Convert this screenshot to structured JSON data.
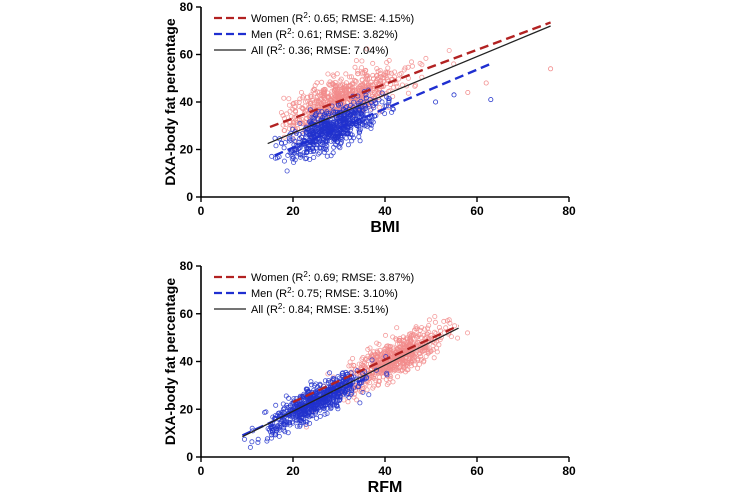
{
  "colors": {
    "women_line": "#b22222",
    "women_points": "#f28c8c",
    "men_line": "#1f2fd0",
    "men_points": "#2233cc",
    "all_line": "#222222"
  },
  "chart_data": [
    {
      "type": "scatter",
      "title": "",
      "xlabel": "BMI",
      "ylabel": "DXA-body fat percentage",
      "xlim": [
        0,
        80
      ],
      "ylim": [
        0,
        80
      ],
      "xticks": [
        "0",
        "20",
        "40",
        "60",
        "80"
      ],
      "yticks": [
        "0",
        "20",
        "40",
        "60",
        "80"
      ],
      "legend_position": "top-left",
      "series": [
        {
          "name": "Women",
          "legend_prefix": "Women (R",
          "legend_sup": "2",
          "legend_suffix": ": 0.65; RMSE: 4.15%)",
          "style": "dashed",
          "line": [
            [
              15,
              29.5
            ],
            [
              76,
              73.5
            ]
          ],
          "cloud": {
            "x_range": [
              17,
              62
            ],
            "x_center": 31,
            "x_spread": 6,
            "slope": 0.75,
            "intercept": 18.5,
            "sd": 4.5,
            "n": 650,
            "seed": 11
          },
          "outliers": [
            [
              76,
              54
            ],
            [
              62,
              48
            ],
            [
              58,
              44
            ]
          ]
        },
        {
          "name": "Men",
          "legend_prefix": "Men (R",
          "legend_sup": "2",
          "legend_suffix": ": 0.61; RMSE: 3.82%)",
          "style": "dashed",
          "line": [
            [
              16,
              17.5
            ],
            [
              63.5,
              56.5
            ]
          ],
          "cloud": {
            "x_range": [
              15,
              60
            ],
            "x_center": 28.5,
            "x_spread": 4.5,
            "slope": 0.88,
            "intercept": 3.5,
            "sd": 3.8,
            "n": 650,
            "seed": 23
          },
          "outliers": [
            [
              63,
              41
            ],
            [
              55,
              43
            ],
            [
              51,
              40
            ]
          ]
        },
        {
          "name": "All",
          "legend_prefix": "All (R",
          "legend_sup": "2",
          "legend_suffix": ": 0.36; RMSE: 7.04%)",
          "style": "solid",
          "line": [
            [
              14.5,
              22.5
            ],
            [
              76,
              72
            ]
          ]
        }
      ]
    },
    {
      "type": "scatter",
      "title": "",
      "xlabel": "RFM",
      "ylabel": "DXA-body fat percentage",
      "xlim": [
        0,
        80
      ],
      "ylim": [
        0,
        80
      ],
      "xticks": [
        "0",
        "20",
        "40",
        "60",
        "80"
      ],
      "yticks": [
        "0",
        "20",
        "40",
        "60",
        "80"
      ],
      "legend_position": "top-left",
      "series": [
        {
          "name": "Women",
          "legend_prefix": "Women (R",
          "legend_sup": "2",
          "legend_suffix": ": 0.69; RMSE: 3.87%)",
          "style": "dashed",
          "line": [
            [
              20,
              23
            ],
            [
              56,
              55
            ]
          ],
          "cloud": {
            "x_range": [
              22,
              58
            ],
            "x_center": 42,
            "x_spread": 5,
            "slope": 0.97,
            "intercept": 0.5,
            "sd": 3.8,
            "n": 650,
            "seed": 37
          },
          "outliers": []
        },
        {
          "name": "Men",
          "legend_prefix": "Men (R",
          "legend_sup": "2",
          "legend_suffix": ": 0.75; RMSE: 3.10%)",
          "style": "dashed",
          "line": [
            [
              9,
              9
            ],
            [
              36,
              33
            ]
          ],
          "cloud": {
            "x_range": [
              9,
              45
            ],
            "x_center": 25,
            "x_spread": 4.8,
            "slope": 0.97,
            "intercept": -1,
            "sd": 3.1,
            "n": 650,
            "seed": 51
          },
          "outliers": []
        },
        {
          "name": "All",
          "legend_prefix": "All (R",
          "legend_sup": "2",
          "legend_suffix": ": 0.84; RMSE: 3.51%)",
          "style": "solid",
          "line": [
            [
              9,
              8.5
            ],
            [
              56,
              54
            ]
          ]
        }
      ]
    }
  ]
}
